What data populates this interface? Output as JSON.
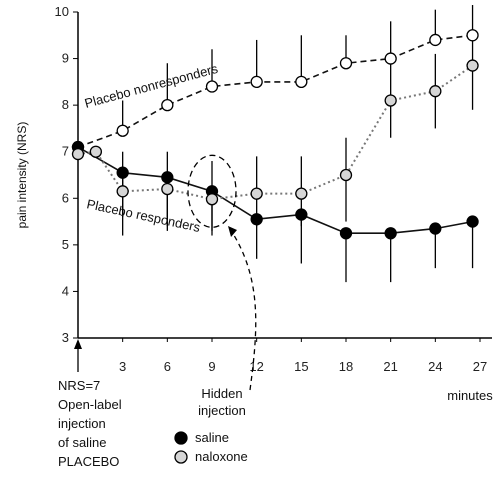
{
  "chart_data": {
    "type": "line",
    "xlabel": "minutes",
    "ylabel": "pain intensity (NRS)",
    "ylim": [
      3,
      10
    ],
    "xlim": [
      0,
      27
    ],
    "x_ticks": [
      "3",
      "6",
      "9",
      "12",
      "15",
      "18",
      "21",
      "24",
      "27"
    ],
    "y_ticks": [
      "3",
      "4",
      "5",
      "6",
      "7",
      "8",
      "9",
      "10"
    ],
    "series": [
      {
        "name": "Placebo nonresponders",
        "style": "dashed",
        "marker": "open",
        "color": "#111111",
        "x": [
          0,
          3,
          6,
          9,
          12,
          15,
          18,
          21,
          24,
          26.5
        ],
        "y": [
          7.1,
          7.45,
          8.0,
          8.4,
          8.5,
          8.5,
          8.9,
          9.0,
          9.4,
          9.5
        ],
        "err_upper": [
          7.1,
          8.1,
          8.9,
          9.2,
          9.4,
          9.5,
          9.5,
          9.8,
          10.05,
          10.15
        ]
      },
      {
        "name": "Placebo responders (saline)",
        "style": "solid",
        "marker": "filled",
        "color": "#111111",
        "x": [
          0,
          3,
          6,
          9,
          12,
          15,
          18,
          21,
          24,
          26.5
        ],
        "y": [
          7.1,
          6.55,
          6.45,
          6.15,
          5.55,
          5.65,
          5.25,
          5.25,
          5.35,
          5.5
        ],
        "err_lower": [
          7.1,
          5.6,
          5.4,
          5.3,
          4.7,
          4.6,
          4.2,
          4.2,
          4.5,
          4.5
        ]
      },
      {
        "name": "Placebo responders (naloxone)",
        "style": "dotted",
        "marker": "grey",
        "color": "#888888",
        "x": [
          0,
          1.2,
          3,
          6,
          9,
          12,
          15,
          18,
          21,
          24,
          26.5
        ],
        "y": [
          6.95,
          7.0,
          6.15,
          6.2,
          5.98,
          6.1,
          6.1,
          6.5,
          8.1,
          8.3,
          8.85
        ],
        "err_lower": [
          6.95,
          7.0,
          5.2,
          5.3,
          5.2,
          5.4,
          5.4,
          5.5,
          7.3,
          7.5,
          7.9
        ],
        "err_upper": [
          6.95,
          7.0,
          7.0,
          7.0,
          6.8,
          6.9,
          6.9,
          7.3,
          8.9,
          9.1,
          9.6
        ]
      }
    ],
    "annotations": {
      "nonresponders": "Placebo nonresponders",
      "responders": "Placebo responders",
      "hidden_injection": [
        "Hidden",
        "injection"
      ],
      "start_note": [
        "NRS=7",
        "Open-label",
        "injection",
        "of saline",
        "PLACEBO"
      ],
      "minutes": "minutes"
    },
    "legend": {
      "position": "bottom",
      "items": [
        {
          "label": "saline",
          "marker": "filled"
        },
        {
          "label": "naloxone",
          "marker": "grey"
        }
      ]
    },
    "grid": false
  }
}
